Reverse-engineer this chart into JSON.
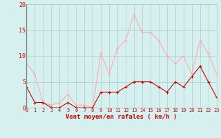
{
  "hours": [
    0,
    1,
    2,
    3,
    4,
    5,
    6,
    7,
    8,
    9,
    10,
    11,
    12,
    13,
    14,
    15,
    16,
    17,
    18,
    19,
    20,
    21,
    22,
    23
  ],
  "wind_avg": [
    4,
    1,
    1,
    0,
    0,
    1,
    0,
    0,
    0,
    3,
    3,
    3,
    4,
    5,
    5,
    5,
    4,
    3,
    5,
    4,
    6,
    8,
    5,
    2
  ],
  "wind_gust": [
    8.5,
    6.5,
    1,
    0.5,
    1,
    2.5,
    0.5,
    0.5,
    0,
    10.5,
    6.5,
    11.5,
    13,
    18,
    14.5,
    14.5,
    13,
    10,
    8.5,
    10,
    6.5,
    13,
    10.5,
    6.5
  ],
  "color_avg": "#cc0000",
  "color_gust": "#ffaaaa",
  "bg_color": "#d6f0f0",
  "grid_color": "#b0c8c8",
  "ylim": [
    0,
    20
  ],
  "yticks": [
    0,
    5,
    10,
    15,
    20
  ],
  "xlabel": "Vent moyen/en rafales ( km/h )",
  "tick_color": "#cc0000",
  "xlabel_color": "#cc0000",
  "tick_fontsize": 5,
  "xlabel_fontsize": 6.5
}
